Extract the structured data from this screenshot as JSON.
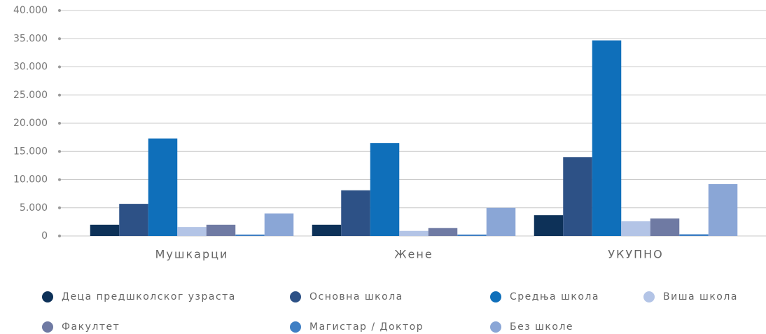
{
  "chart_data": {
    "type": "bar",
    "categories": [
      "Мушкарци",
      "Жене",
      "УКУПНО"
    ],
    "series": [
      {
        "name": "Деца предшколског узраста",
        "color": "#0d3158",
        "values": [
          2000,
          2000,
          3700
        ]
      },
      {
        "name": "Основна школа",
        "color": "#2d5186",
        "values": [
          5700,
          8100,
          14000
        ]
      },
      {
        "name": "Средња школа",
        "color": "#0f6fba",
        "values": [
          17300,
          16500,
          34700
        ]
      },
      {
        "name": "Виша школа",
        "color": "#b3c4e6",
        "values": [
          1600,
          900,
          2600
        ]
      },
      {
        "name": "Факултет",
        "color": "#6f7aa3",
        "values": [
          2000,
          1400,
          3100
        ]
      },
      {
        "name": "Магистар / Доктор",
        "color": "#3f7fc4",
        "values": [
          250,
          250,
          300
        ]
      },
      {
        "name": "Без школе",
        "color": "#8aa6d6",
        "values": [
          4000,
          5000,
          9200
        ]
      }
    ],
    "ylim": [
      0,
      40000
    ],
    "yticks": [
      0,
      {
        "value": 5000,
        "label": "5.000"
      },
      {
        "value": 10000,
        "label": "10.000"
      },
      {
        "value": 15000,
        "label": "15.000"
      },
      {
        "value": 20000,
        "label": "20.000"
      },
      {
        "value": 25000,
        "label": "25.000"
      },
      {
        "value": 30000,
        "label": "30.000"
      },
      {
        "value": 35000,
        "label": "35.000"
      },
      {
        "value": 40000,
        "label": "40.000"
      }
    ],
    "grid": true,
    "legend": "bottom"
  }
}
